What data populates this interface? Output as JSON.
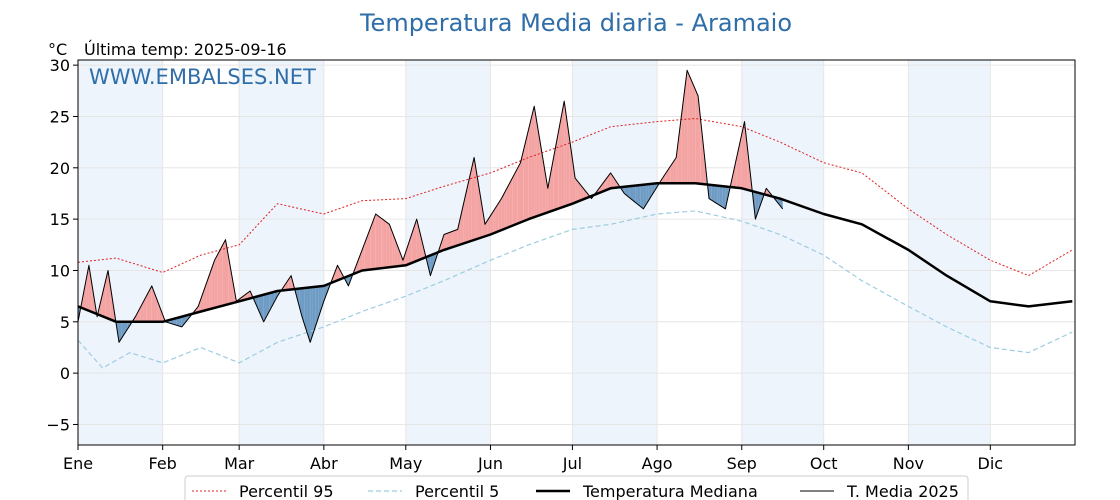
{
  "chart_data": {
    "type": "line",
    "title": "Temperatura Media diaria - Aramaio",
    "unit_label": "°C",
    "last_temp_label": "Última temp: 2025-09-16",
    "watermark": "WWW.EMBALSES.NET",
    "x_axis": {
      "type": "date",
      "range": [
        "2025-01-01",
        "2025-12-31"
      ],
      "ticks": [
        {
          "label": "Ene",
          "date": "2025-01-01"
        },
        {
          "label": "Feb",
          "date": "2025-02-01"
        },
        {
          "label": "Mar",
          "date": "2025-03-01"
        },
        {
          "label": "Abr",
          "date": "2025-04-01"
        },
        {
          "label": "May",
          "date": "2025-05-01"
        },
        {
          "label": "Jun",
          "date": "2025-06-01"
        },
        {
          "label": "Jul",
          "date": "2025-07-01"
        },
        {
          "label": "Ago",
          "date": "2025-08-01"
        },
        {
          "label": "Sep",
          "date": "2025-09-01"
        },
        {
          "label": "Oct",
          "date": "2025-10-01"
        },
        {
          "label": "Nov",
          "date": "2025-11-01"
        },
        {
          "label": "Dic",
          "date": "2025-12-01"
        }
      ]
    },
    "y_axis": {
      "min": -7,
      "max": 30.5,
      "ticks": [
        -5,
        0,
        5,
        10,
        15,
        20,
        25,
        30
      ]
    },
    "grid": true,
    "legend_position": "bottom",
    "colors": {
      "p95": "#e02020",
      "p5": "#9ccde0",
      "median": "#000000",
      "year": "#000000",
      "fill_above": "#f4a3a3",
      "fill_below": "#6f9cc4",
      "band": "#eef4fb",
      "title": "#2f6ea8"
    },
    "series": [
      {
        "name": "Percentil 95",
        "style": "dotted-red",
        "points": [
          [
            "2025-01-01",
            10.8
          ],
          [
            "2025-01-15",
            11.2
          ],
          [
            "2025-02-01",
            9.8
          ],
          [
            "2025-02-15",
            11.5
          ],
          [
            "2025-03-01",
            12.5
          ],
          [
            "2025-03-15",
            16.5
          ],
          [
            "2025-04-01",
            15.5
          ],
          [
            "2025-04-15",
            16.8
          ],
          [
            "2025-05-01",
            17.0
          ],
          [
            "2025-05-15",
            18.2
          ],
          [
            "2025-06-01",
            19.5
          ],
          [
            "2025-06-15",
            21.0
          ],
          [
            "2025-07-01",
            22.5
          ],
          [
            "2025-07-15",
            24.0
          ],
          [
            "2025-08-01",
            24.5
          ],
          [
            "2025-08-15",
            24.8
          ],
          [
            "2025-09-01",
            24.0
          ],
          [
            "2025-09-15",
            22.5
          ],
          [
            "2025-10-01",
            20.5
          ],
          [
            "2025-10-15",
            19.5
          ],
          [
            "2025-11-01",
            16.0
          ],
          [
            "2025-11-15",
            13.5
          ],
          [
            "2025-12-01",
            11.0
          ],
          [
            "2025-12-15",
            9.5
          ],
          [
            "2025-12-31",
            12.0
          ]
        ]
      },
      {
        "name": "Percentil 5",
        "style": "dashed-lightblue",
        "points": [
          [
            "2025-01-01",
            3.2
          ],
          [
            "2025-01-10",
            0.5
          ],
          [
            "2025-01-20",
            2.0
          ],
          [
            "2025-02-01",
            1.0
          ],
          [
            "2025-02-15",
            2.5
          ],
          [
            "2025-03-01",
            1.0
          ],
          [
            "2025-03-15",
            3.0
          ],
          [
            "2025-04-01",
            4.5
          ],
          [
            "2025-04-15",
            6.0
          ],
          [
            "2025-05-01",
            7.5
          ],
          [
            "2025-05-15",
            9.0
          ],
          [
            "2025-06-01",
            11.0
          ],
          [
            "2025-06-15",
            12.5
          ],
          [
            "2025-07-01",
            14.0
          ],
          [
            "2025-07-15",
            14.5
          ],
          [
            "2025-08-01",
            15.5
          ],
          [
            "2025-08-15",
            15.8
          ],
          [
            "2025-09-01",
            14.8
          ],
          [
            "2025-09-15",
            13.5
          ],
          [
            "2025-10-01",
            11.5
          ],
          [
            "2025-10-15",
            9.0
          ],
          [
            "2025-11-01",
            6.5
          ],
          [
            "2025-11-15",
            4.5
          ],
          [
            "2025-12-01",
            2.5
          ],
          [
            "2025-12-15",
            2.0
          ],
          [
            "2025-12-31",
            4.0
          ]
        ]
      },
      {
        "name": "Temperatura Mediana",
        "style": "thick-black",
        "points": [
          [
            "2025-01-01",
            6.5
          ],
          [
            "2025-01-15",
            5.0
          ],
          [
            "2025-02-01",
            5.0
          ],
          [
            "2025-02-15",
            6.0
          ],
          [
            "2025-03-01",
            7.0
          ],
          [
            "2025-03-15",
            8.0
          ],
          [
            "2025-04-01",
            8.5
          ],
          [
            "2025-04-15",
            10.0
          ],
          [
            "2025-05-01",
            10.5
          ],
          [
            "2025-05-15",
            12.0
          ],
          [
            "2025-06-01",
            13.5
          ],
          [
            "2025-06-15",
            15.0
          ],
          [
            "2025-07-01",
            16.5
          ],
          [
            "2025-07-15",
            18.0
          ],
          [
            "2025-08-01",
            18.5
          ],
          [
            "2025-08-15",
            18.5
          ],
          [
            "2025-09-01",
            18.0
          ],
          [
            "2025-09-15",
            17.0
          ],
          [
            "2025-10-01",
            15.5
          ],
          [
            "2025-10-15",
            14.5
          ],
          [
            "2025-11-01",
            12.0
          ],
          [
            "2025-11-15",
            9.5
          ],
          [
            "2025-12-01",
            7.0
          ],
          [
            "2025-12-15",
            6.5
          ],
          [
            "2025-12-31",
            7.0
          ]
        ]
      },
      {
        "name": "T. Media 2025",
        "style": "thin-black",
        "points": [
          [
            "2025-01-01",
            5.0
          ],
          [
            "2025-01-05",
            10.5
          ],
          [
            "2025-01-08",
            5.5
          ],
          [
            "2025-01-12",
            10.0
          ],
          [
            "2025-01-16",
            3.0
          ],
          [
            "2025-01-22",
            5.5
          ],
          [
            "2025-01-28",
            8.5
          ],
          [
            "2025-02-02",
            5.0
          ],
          [
            "2025-02-08",
            4.5
          ],
          [
            "2025-02-14",
            6.5
          ],
          [
            "2025-02-20",
            11.0
          ],
          [
            "2025-02-24",
            13.0
          ],
          [
            "2025-02-28",
            7.0
          ],
          [
            "2025-03-05",
            8.0
          ],
          [
            "2025-03-10",
            5.0
          ],
          [
            "2025-03-15",
            7.5
          ],
          [
            "2025-03-20",
            9.5
          ],
          [
            "2025-03-24",
            5.5
          ],
          [
            "2025-03-27",
            3.0
          ],
          [
            "2025-04-01",
            7.0
          ],
          [
            "2025-04-06",
            10.5
          ],
          [
            "2025-04-10",
            8.5
          ],
          [
            "2025-04-15",
            12.0
          ],
          [
            "2025-04-20",
            15.5
          ],
          [
            "2025-04-25",
            14.5
          ],
          [
            "2025-04-30",
            11.0
          ],
          [
            "2025-05-05",
            15.0
          ],
          [
            "2025-05-10",
            9.5
          ],
          [
            "2025-05-15",
            13.5
          ],
          [
            "2025-05-20",
            14.0
          ],
          [
            "2025-05-26",
            21.0
          ],
          [
            "2025-05-30",
            14.5
          ],
          [
            "2025-06-05",
            17.0
          ],
          [
            "2025-06-12",
            20.5
          ],
          [
            "2025-06-17",
            26.0
          ],
          [
            "2025-06-22",
            18.0
          ],
          [
            "2025-06-28",
            26.5
          ],
          [
            "2025-07-02",
            19.0
          ],
          [
            "2025-07-08",
            17.0
          ],
          [
            "2025-07-15",
            19.5
          ],
          [
            "2025-07-20",
            17.5
          ],
          [
            "2025-07-27",
            16.0
          ],
          [
            "2025-08-03",
            19.0
          ],
          [
            "2025-08-08",
            21.0
          ],
          [
            "2025-08-12",
            29.5
          ],
          [
            "2025-08-16",
            27.0
          ],
          [
            "2025-08-20",
            17.0
          ],
          [
            "2025-08-26",
            16.0
          ],
          [
            "2025-09-02",
            24.5
          ],
          [
            "2025-09-06",
            15.0
          ],
          [
            "2025-09-10",
            18.0
          ],
          [
            "2025-09-16",
            16.0
          ]
        ]
      }
    ]
  }
}
